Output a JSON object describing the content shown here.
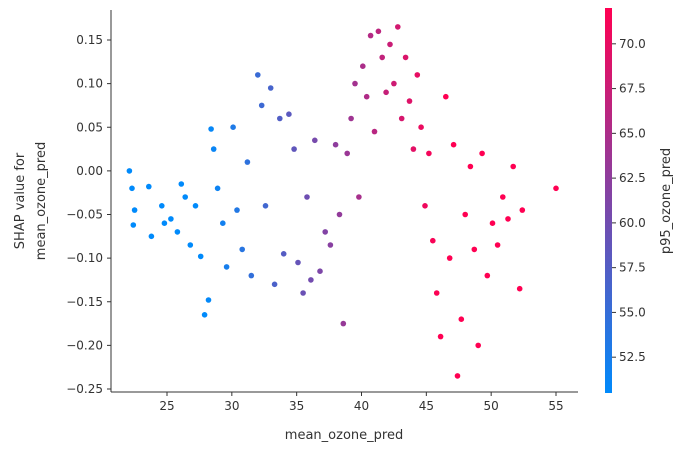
{
  "chart_data": {
    "type": "scatter",
    "xlabel": "mean_ozone_pred",
    "ylabel_lines": [
      "SHAP value for",
      "mean_ozone_pred"
    ],
    "xlim": [
      21,
      56.5
    ],
    "ylim": [
      -0.255,
      0.18
    ],
    "x_ticks": [
      25,
      30,
      35,
      40,
      45,
      50,
      55
    ],
    "y_ticks": [
      0.15,
      0.1,
      0.05,
      0.0,
      -0.05,
      -0.1,
      -0.15,
      -0.2,
      -0.25
    ],
    "x_tick_labels": [
      "25",
      "30",
      "35",
      "40",
      "45",
      "50",
      "55"
    ],
    "y_tick_labels": [
      "0.15",
      "0.10",
      "0.05",
      "0.00",
      "−0.05",
      "−0.10",
      "−0.15",
      "−0.20",
      "−0.25"
    ],
    "grid": false,
    "colorbar": {
      "label": "p95_ozone_pred",
      "range": [
        50.5,
        72
      ],
      "ticks": [
        52.5,
        55.0,
        57.5,
        60.0,
        62.5,
        65.0,
        67.5,
        70.0
      ],
      "tick_labels": [
        "52.5",
        "55.0",
        "57.5",
        "60.0",
        "62.5",
        "65.0",
        "67.5",
        "70.0"
      ],
      "colors": [
        "#008afb",
        "#ff0052"
      ]
    },
    "series": [
      {
        "points": [
          [
            22.1,
            0.0
          ],
          [
            22.3,
            -0.02
          ],
          [
            22.5,
            -0.045
          ],
          [
            22.4,
            -0.062
          ],
          [
            23.6,
            -0.018
          ],
          [
            23.8,
            -0.075
          ],
          [
            24.6,
            -0.04
          ],
          [
            24.8,
            -0.06
          ],
          [
            25.3,
            -0.055
          ],
          [
            25.8,
            -0.07
          ],
          [
            26.1,
            -0.015
          ],
          [
            26.4,
            -0.03
          ],
          [
            26.8,
            -0.085
          ],
          [
            27.2,
            -0.04
          ],
          [
            27.6,
            -0.098
          ],
          [
            27.9,
            -0.165
          ],
          [
            28.2,
            -0.148
          ],
          [
            28.4,
            0.048
          ],
          [
            28.6,
            0.025
          ],
          [
            28.9,
            -0.02
          ],
          [
            29.3,
            -0.06
          ],
          [
            29.6,
            -0.11
          ],
          [
            30.1,
            0.05
          ],
          [
            30.4,
            -0.045
          ],
          [
            30.8,
            -0.09
          ],
          [
            31.2,
            0.01
          ],
          [
            31.5,
            -0.12
          ],
          [
            32.0,
            0.11
          ],
          [
            32.3,
            0.075
          ],
          [
            32.6,
            -0.04
          ],
          [
            33.0,
            0.095
          ],
          [
            33.3,
            -0.13
          ],
          [
            33.7,
            0.06
          ],
          [
            34.0,
            -0.095
          ],
          [
            34.4,
            0.065
          ],
          [
            34.8,
            0.025
          ],
          [
            35.1,
            -0.105
          ],
          [
            35.5,
            -0.14
          ],
          [
            35.8,
            -0.03
          ],
          [
            36.1,
            -0.125
          ],
          [
            36.4,
            0.035
          ],
          [
            36.8,
            -0.115
          ],
          [
            37.2,
            -0.07
          ],
          [
            37.6,
            -0.085
          ],
          [
            38.0,
            0.03
          ],
          [
            38.3,
            -0.05
          ],
          [
            38.6,
            -0.175
          ],
          [
            38.9,
            0.02
          ],
          [
            39.2,
            0.06
          ],
          [
            39.5,
            0.1
          ],
          [
            39.8,
            -0.03
          ],
          [
            40.1,
            0.12
          ],
          [
            40.4,
            0.085
          ],
          [
            40.7,
            0.155
          ],
          [
            41.0,
            0.045
          ],
          [
            41.3,
            0.16
          ],
          [
            41.6,
            0.13
          ],
          [
            41.9,
            0.09
          ],
          [
            42.2,
            0.145
          ],
          [
            42.5,
            0.1
          ],
          [
            42.8,
            0.165
          ],
          [
            43.1,
            0.06
          ],
          [
            43.4,
            0.13
          ],
          [
            43.7,
            0.08
          ],
          [
            44.0,
            0.025
          ],
          [
            44.3,
            0.11
          ],
          [
            44.6,
            0.05
          ],
          [
            44.9,
            -0.04
          ],
          [
            45.2,
            0.02
          ],
          [
            45.5,
            -0.08
          ],
          [
            45.8,
            -0.14
          ],
          [
            46.1,
            -0.19
          ],
          [
            46.5,
            0.085
          ],
          [
            46.8,
            -0.1
          ],
          [
            47.1,
            0.03
          ],
          [
            47.4,
            -0.235
          ],
          [
            47.7,
            -0.17
          ],
          [
            48.0,
            -0.05
          ],
          [
            48.4,
            0.005
          ],
          [
            48.7,
            -0.09
          ],
          [
            49.0,
            -0.2
          ],
          [
            49.3,
            0.02
          ],
          [
            49.7,
            -0.12
          ],
          [
            50.1,
            -0.06
          ],
          [
            50.5,
            -0.085
          ],
          [
            50.9,
            -0.03
          ],
          [
            51.3,
            -0.055
          ],
          [
            51.7,
            0.005
          ],
          [
            52.2,
            -0.135
          ],
          [
            52.4,
            -0.045
          ],
          [
            55.0,
            -0.02
          ]
        ]
      }
    ]
  }
}
